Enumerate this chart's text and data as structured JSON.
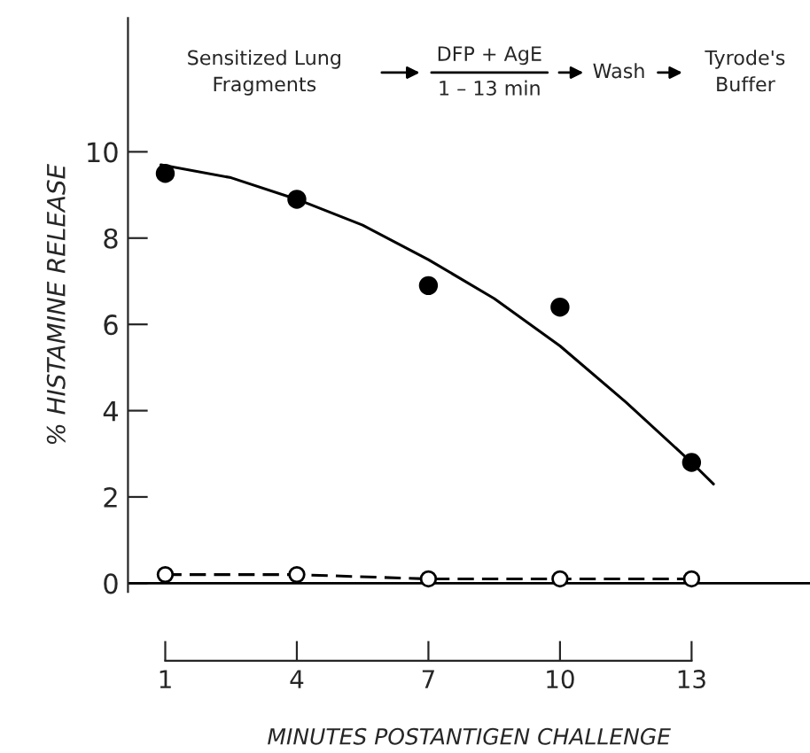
{
  "chart_data": {
    "type": "scatter",
    "xlabel": "MINUTES POSTANTIGEN CHALLENGE",
    "ylabel": "% HISTAMINE RELEASE",
    "x": [
      1,
      4,
      7,
      10,
      13
    ],
    "series": [
      {
        "color": "#000000",
        "marker": "circle",
        "values": [
          9.5,
          8.9,
          6.9,
          6.4,
          2.8
        ]
      },
      {
        "type": "line",
        "color": "#000000",
        "marker": "none",
        "line_style": "solid",
        "x": [
          0.9,
          2.5,
          4,
          5.5,
          7,
          8.5,
          10,
          11.5,
          13,
          13.5
        ],
        "values": [
          9.7,
          9.4,
          8.9,
          8.3,
          7.5,
          6.6,
          5.5,
          4.2,
          2.8,
          2.3
        ]
      },
      {
        "type": "line",
        "color": "#ffffff",
        "marker": "circle",
        "line_style": "dashed",
        "values": [
          0.2,
          0.2,
          0.1,
          0.1,
          0.1
        ]
      }
    ],
    "xlim": [
      0.15,
      15.7
    ],
    "xticks": [
      1,
      4,
      7,
      10,
      13
    ],
    "ylim": [
      -0.2,
      13.1
    ],
    "yticks": [
      0,
      2,
      4,
      6,
      8,
      10
    ],
    "ref_lines": [
      {
        "axis": "y",
        "value": 0,
        "color": "#000000"
      }
    ],
    "annotations": [
      "Sensitized Lung\nFragments",
      "DFP + AgE",
      "1 – 13 min",
      "Wash",
      "Tyrode's\nBuffer"
    ],
    "grid": false
  }
}
